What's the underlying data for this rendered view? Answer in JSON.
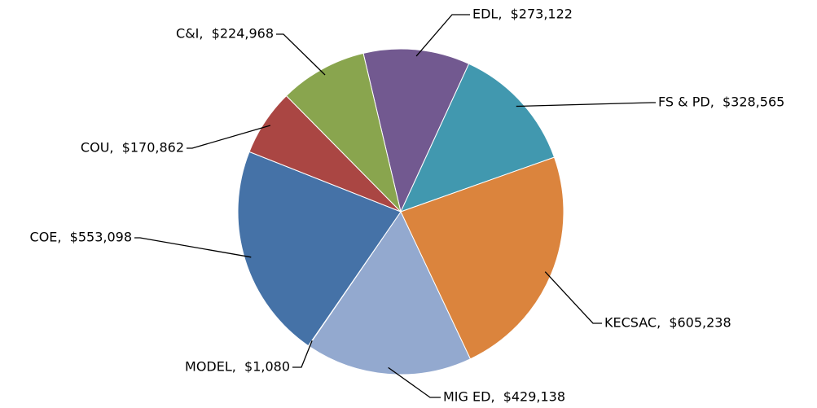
{
  "chart_data": {
    "type": "pie",
    "values": [
      273122,
      328565,
      605238,
      429138,
      1080,
      553098,
      170862,
      224968
    ],
    "value_labels": [
      "EDL,  $273,122",
      "FS & PD,  $328,565",
      "KECSAC,  $605,238",
      "MIG ED,  $429,138",
      "MODEL,  $1,080",
      "COE,  $553,098",
      "COU,  $170,862",
      "C&I,  $224,968"
    ],
    "colors": [
      "#725990",
      "#4198af",
      "#db843d",
      "#93a9cf",
      "#b9cd96",
      "#4572a7",
      "#aa4643",
      "#89a54e"
    ]
  }
}
